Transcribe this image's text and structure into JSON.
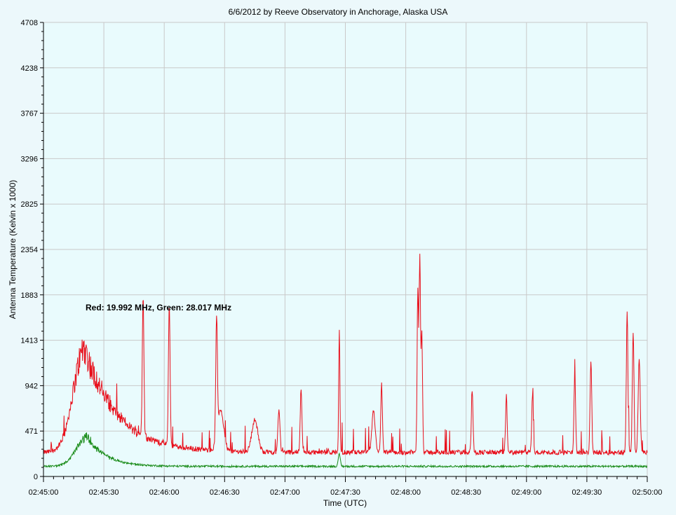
{
  "chart_data": {
    "type": "line",
    "title": "6/6/2012  by  Reeve Observatory  in  Anchorage, Alaska  USA",
    "xlabel": "Time (UTC)",
    "ylabel": "Antenna Temperature (Kelvin x 1000)",
    "annotation": "Red: 19.992 MHz, Green: 28.017 MHz",
    "x_ticks": [
      "02:45:00",
      "02:45:30",
      "02:46:00",
      "02:46:30",
      "02:47:00",
      "02:47:30",
      "02:48:00",
      "02:48:30",
      "02:49:00",
      "02:49:30",
      "02:50:00"
    ],
    "y_ticks": [
      "0",
      "471",
      "942",
      "1413",
      "1883",
      "2354",
      "2825",
      "3296",
      "3767",
      "4238",
      "4708"
    ],
    "xlim_seconds": [
      0,
      300
    ],
    "ylim": [
      0,
      4708
    ],
    "grid": true,
    "colors": {
      "background": "#ecf8fb",
      "plot_bg": "#e9fbfd",
      "red": "#e8101c",
      "green": "#1a8c1a",
      "grid": "#c9c9c9"
    },
    "series": [
      {
        "name": "Red: 19.992 MHz",
        "color": "#e8101c",
        "baseline": 250,
        "noise": 25,
        "bursts": [
          {
            "t": 20.5,
            "v": 1330,
            "w": 5.5,
            "decay": 16
          },
          {
            "t": 49.5,
            "v": 1700,
            "w": 0.4
          },
          {
            "t": 62.5,
            "v": 1720,
            "w": 0.4
          },
          {
            "t": 86,
            "v": 1480,
            "w": 0.4
          },
          {
            "t": 88,
            "v": 680,
            "w": 1.5
          },
          {
            "t": 105,
            "v": 580,
            "w": 1.5
          },
          {
            "t": 117,
            "v": 700,
            "w": 0.5
          },
          {
            "t": 128,
            "v": 920,
            "w": 0.4
          },
          {
            "t": 147,
            "v": 1500,
            "w": 0.3
          },
          {
            "t": 164,
            "v": 680,
            "w": 0.8
          },
          {
            "t": 168,
            "v": 950,
            "w": 0.4
          },
          {
            "t": 186,
            "v": 1900,
            "w": 0.35
          },
          {
            "t": 187,
            "v": 2240,
            "w": 0.35
          },
          {
            "t": 188,
            "v": 1480,
            "w": 0.35
          },
          {
            "t": 213,
            "v": 900,
            "w": 0.4
          },
          {
            "t": 230,
            "v": 830,
            "w": 0.4
          },
          {
            "t": 243,
            "v": 820,
            "w": 0.4
          },
          {
            "t": 264,
            "v": 1050,
            "w": 0.4
          },
          {
            "t": 272,
            "v": 1210,
            "w": 0.4
          },
          {
            "t": 290,
            "v": 1700,
            "w": 0.4
          },
          {
            "t": 293,
            "v": 1500,
            "w": 0.4
          },
          {
            "t": 296,
            "v": 1210,
            "w": 0.5
          }
        ]
      },
      {
        "name": "Green: 28.017 MHz",
        "color": "#1a8c1a",
        "baseline": 105,
        "noise": 10,
        "bursts": [
          {
            "t": 22,
            "v": 410,
            "w": 5.5,
            "decay": 9
          },
          {
            "t": 147,
            "v": 230,
            "w": 0.5
          }
        ]
      }
    ]
  }
}
